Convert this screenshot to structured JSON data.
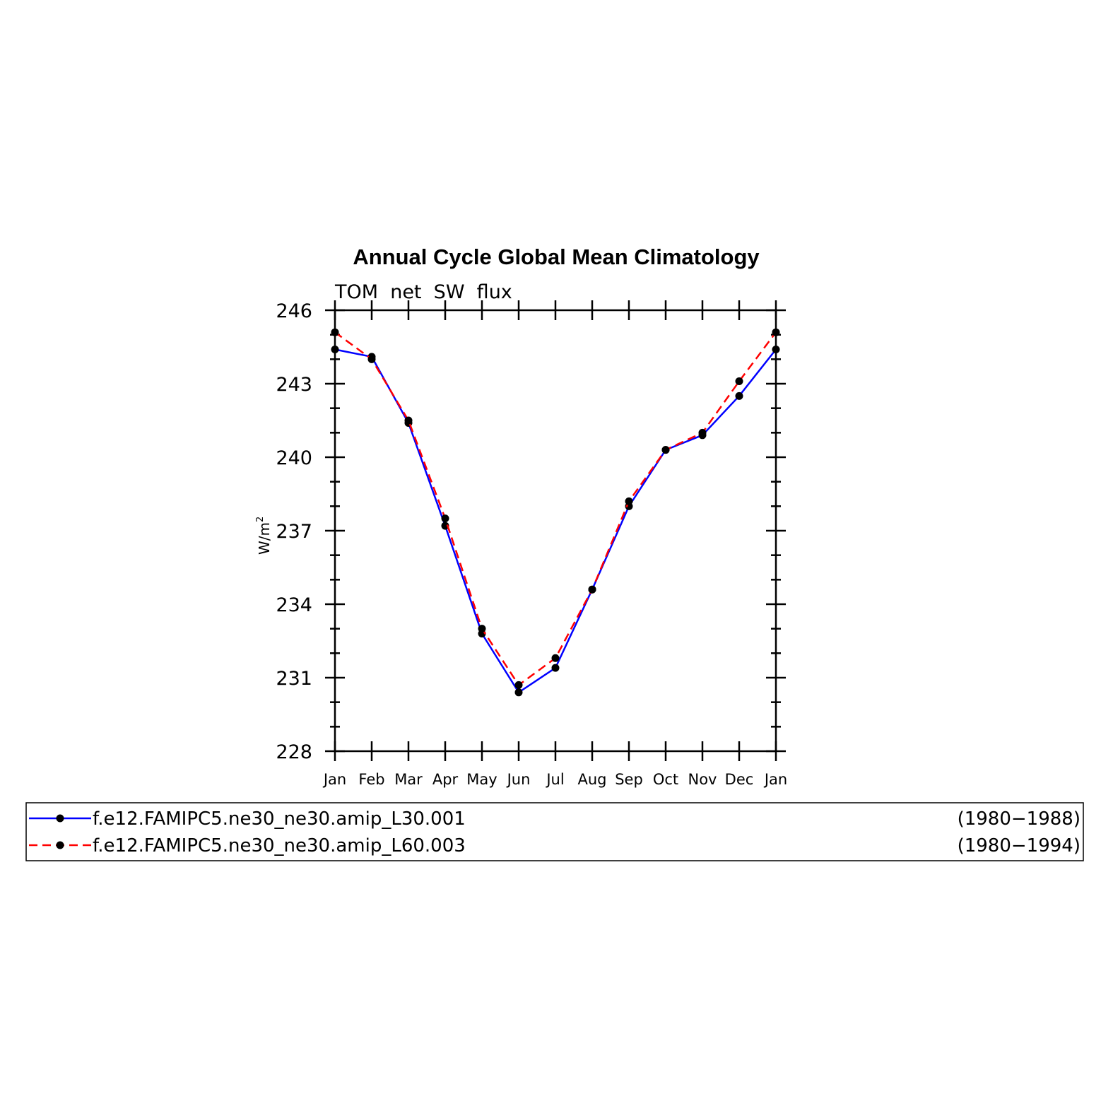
{
  "chart_data": {
    "type": "line",
    "title": "Annual Cycle Global Mean Climatology",
    "subtitle": "TOM  net  SW  flux",
    "ylabel": "W/m",
    "ylabel_superscript": "2",
    "xlabel": "",
    "x": [
      "Jan",
      "Feb",
      "Mar",
      "Apr",
      "May",
      "Jun",
      "Jul",
      "Aug",
      "Sep",
      "Oct",
      "Nov",
      "Dec",
      "Jan"
    ],
    "ylim": [
      228,
      246
    ],
    "yticks": [
      "228",
      "231",
      "234",
      "237",
      "240",
      "243",
      "246"
    ],
    "grid": false,
    "legend_position": "bottom",
    "series": [
      {
        "name": "f.e12.FAMIPC5.ne30_ne30.amip_L30.001",
        "period": "(1980−1988)",
        "color": "#0000ff",
        "style": "solid",
        "values": [
          244.4,
          244.1,
          241.4,
          237.2,
          232.8,
          230.4,
          231.4,
          234.6,
          238.0,
          240.3,
          240.9,
          242.5,
          244.4
        ]
      },
      {
        "name": "f.e12.FAMIPC5.ne30_ne30.amip_L60.003",
        "period": "(1980−1994)",
        "color": "#ff0000",
        "style": "dashed",
        "values": [
          245.1,
          244.0,
          241.5,
          237.5,
          233.0,
          230.7,
          231.8,
          234.6,
          238.2,
          240.3,
          241.0,
          243.1,
          245.1
        ]
      }
    ]
  }
}
